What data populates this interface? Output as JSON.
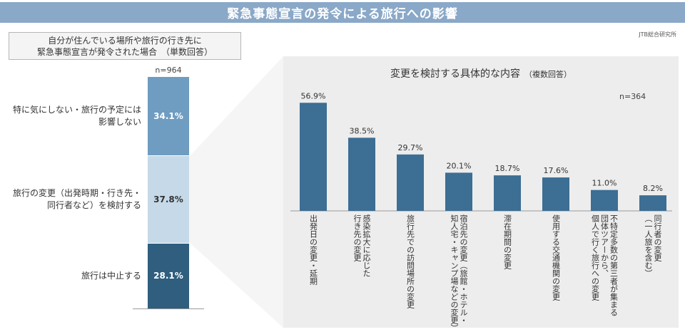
{
  "header": {
    "title": "緊急事態宣言の発令による旅行への影響",
    "source": "JTB総合研究所"
  },
  "left": {
    "question_line1": "自分が住んでいる場所や旅行の行き先に",
    "question_line2": "緊急事態宣言が発令された場合　（単数回答）",
    "n": "n=964",
    "labels": {
      "top_line1": "特に気にしない・旅行の予定には",
      "top_line2": "影響しない",
      "mid_line1": "旅行の変更（出発時期・行き先・",
      "mid_line2": "同行者など）を検討する",
      "bottom": "旅行は中止する"
    }
  },
  "right": {
    "title": "変更を検討する具体的な内容",
    "title_sub": "（複数回答）",
    "n": "n=364"
  },
  "chart_data": [
    {
      "type": "bar",
      "stacked": true,
      "categories": [
        "旅行は中止する",
        "旅行の変更（出発時期・行き先・同行者など）を検討する",
        "特に気にしない・旅行の予定には影響しない"
      ],
      "values": [
        28.1,
        37.8,
        34.1
      ],
      "value_labels": [
        "28.1%",
        "37.8%",
        "34.1%"
      ],
      "colors": [
        "#2F5E7E",
        "#C5D9E8",
        "#6F9CC1"
      ],
      "ylim": [
        0,
        100
      ]
    },
    {
      "type": "bar",
      "categories": [
        "出発日の変更・延期",
        "感染拡大に応じた行き先の変更",
        "旅行先での訪問場所の変更",
        "宿泊先の変更（旅館・ホテル・知人宅・キャンプ場などの変更）",
        "滞在期間の変更",
        "使用する交通機関の変更",
        "不特定多数の第三者が集まる団体ツアーから、個人で行く旅行への変更",
        "同行者の変更（一人旅を含む）"
      ],
      "label_lines": [
        [
          "出発日の変更・延期"
        ],
        [
          "感染拡大に応じた",
          "行き先の変更"
        ],
        [
          "旅行先での訪問場所の変更"
        ],
        [
          "宿泊先の変更（旅館・ホテル・",
          "知人宅・キャンプ場などの変更）"
        ],
        [
          "滞在期間の変更"
        ],
        [
          "使用する交通機関の変更"
        ],
        [
          "不特定多数の第三者が集まる",
          "団体ツアーから、",
          "個人で行く旅行への変更"
        ],
        [
          "同行者の変更",
          "（一人旅を含む）"
        ]
      ],
      "values": [
        56.9,
        38.5,
        29.7,
        20.1,
        18.7,
        17.6,
        11.0,
        8.2
      ],
      "value_labels": [
        "56.9%",
        "38.5%",
        "29.7%",
        "20.1%",
        "18.7%",
        "17.6%",
        "11.0%",
        "8.2%"
      ],
      "bar_color": "#3D6E94",
      "ylim": [
        0,
        60
      ]
    }
  ]
}
